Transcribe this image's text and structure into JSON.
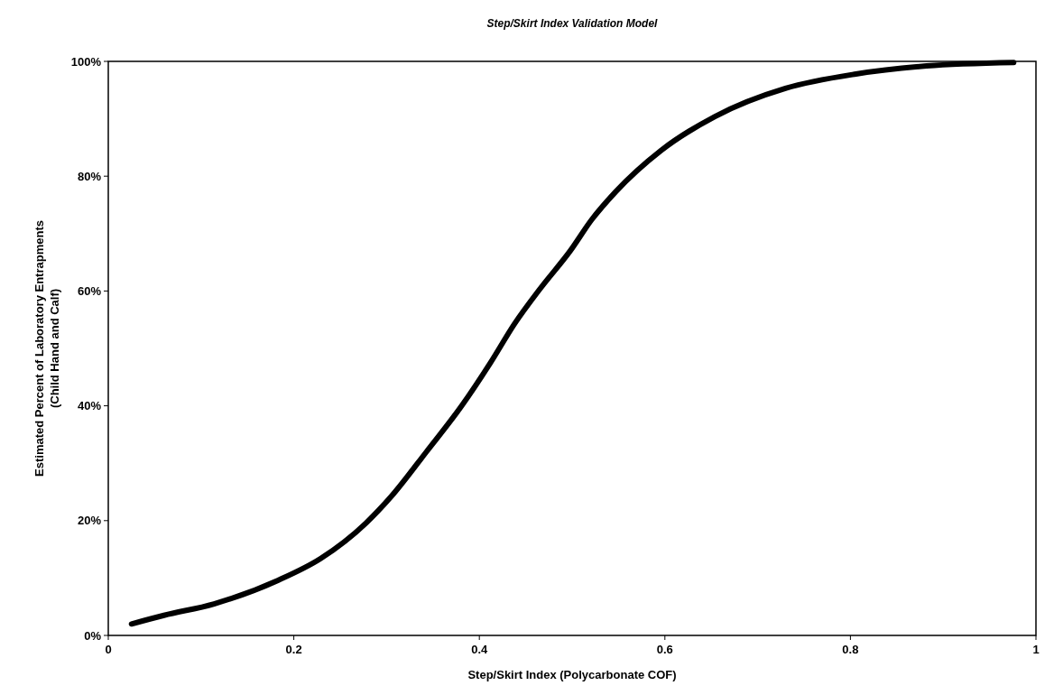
{
  "chart_data": {
    "type": "line",
    "title": "Step/Skirt Index Validation Model",
    "xlabel": "Step/Skirt Index (Polycarbonate COF)",
    "ylabel": "Estimated Percent of Laboratory Entrapments\n(Child Hand and Calf)",
    "xlim": [
      0,
      1
    ],
    "xticks": [
      0,
      0.2,
      0.4,
      0.6,
      0.8,
      1
    ],
    "ylim": [
      0,
      100
    ],
    "yticks": [
      {
        "value": 0,
        "label": "0%"
      },
      {
        "value": 20,
        "label": "20%"
      },
      {
        "value": 40,
        "label": "40%"
      },
      {
        "value": 60,
        "label": "60%"
      },
      {
        "value": 80,
        "label": "80%"
      },
      {
        "value": 100,
        "label": "100%"
      }
    ],
    "grid": false,
    "marker": "none",
    "line_style": "solid",
    "series": [
      {
        "color": "#000000",
        "x": [
          0.025,
          0.06,
          0.114,
          0.183,
          0.229,
          0.278,
          0.305,
          0.343,
          0.381,
          0.412,
          0.438,
          0.466,
          0.498,
          0.521,
          0.547,
          0.596,
          0.654,
          0.73,
          0.806,
          0.882,
          0.976
        ],
        "values": [
          2,
          3.5,
          5.5,
          9.6,
          13.4,
          19.6,
          24.2,
          32,
          40,
          47.5,
          54.3,
          60.5,
          67,
          72.4,
          77.3,
          84.5,
          90.4,
          95.3,
          97.8,
          99.2,
          99.8
        ]
      }
    ]
  }
}
